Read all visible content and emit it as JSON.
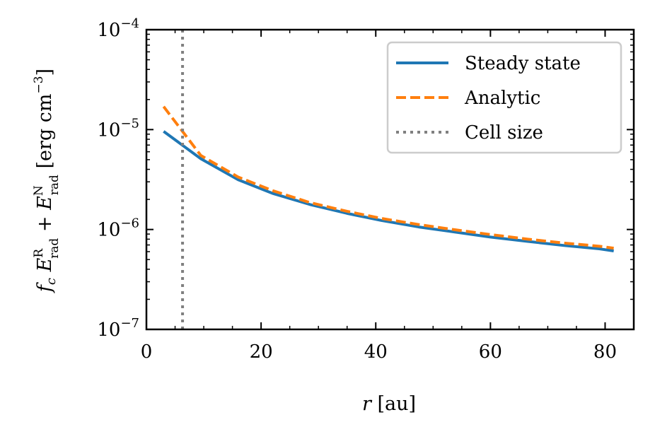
{
  "chart_data": {
    "type": "line",
    "xlabel": "r [au]",
    "ylabel": "f_c E_rad^R + E_rad^N [erg cm^-3]",
    "xlim": [
      0,
      85
    ],
    "ylim": [
      1e-07,
      0.0001
    ],
    "yscale": "log",
    "x_ticks": [
      0,
      20,
      40,
      60,
      80
    ],
    "x_tick_labels": [
      "0",
      "20",
      "40",
      "60",
      "80"
    ],
    "y_tick_exponents": [
      -7,
      -6,
      -5,
      -4
    ],
    "legend_position": "top-right",
    "series": [
      {
        "name": "Steady state",
        "style": "solid",
        "color": "#1f77b4",
        "x": [
          3,
          9.5,
          16,
          22,
          28.5,
          35,
          41,
          47.5,
          54,
          60,
          66.5,
          73,
          79,
          81.5
        ],
        "y": [
          9.6e-06,
          5.1e-06,
          3.15e-06,
          2.3e-06,
          1.78e-06,
          1.45e-06,
          1.23e-06,
          1.06e-06,
          9.4e-07,
          8.4e-07,
          7.6e-07,
          6.9e-07,
          6.4e-07,
          6.1e-07
        ]
      },
      {
        "name": "Analytic",
        "style": "dashed",
        "color": "#ff7f0e",
        "x": [
          3,
          9.5,
          16,
          22,
          28.5,
          35,
          41,
          47.5,
          54,
          60,
          66.5,
          73,
          79,
          81.5
        ],
        "y": [
          1.7e-05,
          5.5e-06,
          3.35e-06,
          2.45e-06,
          1.86e-06,
          1.52e-06,
          1.29e-06,
          1.12e-06,
          9.9e-07,
          8.9e-07,
          8e-07,
          7.3e-07,
          6.8e-07,
          6.5e-07
        ]
      },
      {
        "name": "Cell size",
        "style": "dotted",
        "color": "#808080",
        "vline_x": 6.3
      }
    ]
  }
}
